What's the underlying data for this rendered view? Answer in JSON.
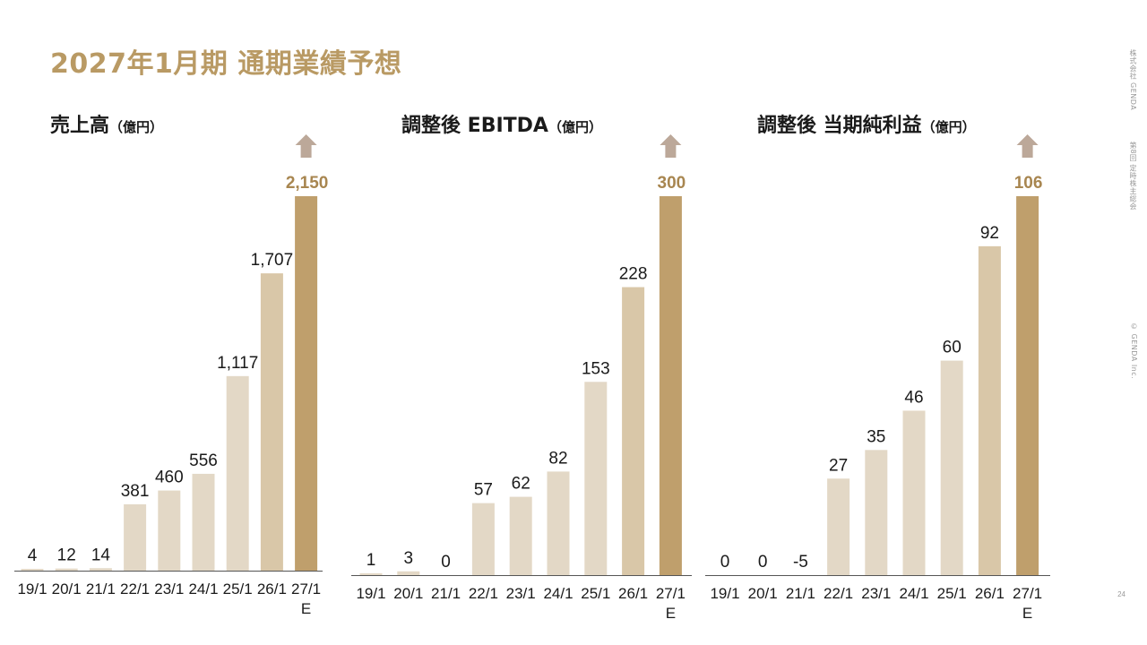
{
  "page_title": "2027年1月期 通期業績予想",
  "side_labels": {
    "company": "株式会社 GENDA",
    "meeting": "第8回 定時株主総会",
    "copyright": "© GENDA Inc."
  },
  "page_number": "24",
  "colors": {
    "title": "#b99a64",
    "bar_light": "#e3d8c6",
    "bar_last": "#bf9f6c",
    "bar_prev": "#d9c7a8",
    "arrow": "#bca899",
    "axis": "#555555"
  },
  "chart_data": [
    {
      "type": "bar",
      "title": "売上高",
      "unit": "（億円）",
      "categories": [
        "19/1",
        "20/1",
        "21/1",
        "22/1",
        "23/1",
        "24/1",
        "25/1",
        "26/1",
        "27/1\nE"
      ],
      "values": [
        4,
        12,
        14,
        381,
        460,
        556,
        1117,
        1707,
        2150
      ],
      "data_labels": [
        "4",
        "12",
        "14",
        "381",
        "460",
        "556",
        "1,117",
        "1,707",
        "2,150"
      ],
      "ylim": [
        0,
        2150
      ],
      "highlight_index": 8,
      "arrow_up": true
    },
    {
      "type": "bar",
      "title": "調整後 EBITDA",
      "unit": "（億円）",
      "categories": [
        "19/1",
        "20/1",
        "21/1",
        "22/1",
        "23/1",
        "24/1",
        "25/1",
        "26/1",
        "27/1\nE"
      ],
      "values": [
        1,
        3,
        0,
        57,
        62,
        82,
        153,
        228,
        300
      ],
      "data_labels": [
        "1",
        "3",
        "0",
        "57",
        "62",
        "82",
        "153",
        "228",
        "300"
      ],
      "ylim": [
        0,
        300
      ],
      "highlight_index": 8,
      "arrow_up": true
    },
    {
      "type": "bar",
      "title": "調整後 当期純利益",
      "unit": "（億円）",
      "categories": [
        "19/1",
        "20/1",
        "21/1",
        "22/1",
        "23/1",
        "24/1",
        "25/1",
        "26/1",
        "27/1\nE"
      ],
      "values": [
        0,
        0,
        -5,
        27,
        35,
        46,
        60,
        92,
        106
      ],
      "data_labels": [
        "0",
        "0",
        "-5",
        "27",
        "35",
        "46",
        "60",
        "92",
        "106"
      ],
      "ylim": [
        0,
        106
      ],
      "highlight_index": 8,
      "arrow_up": true
    }
  ]
}
